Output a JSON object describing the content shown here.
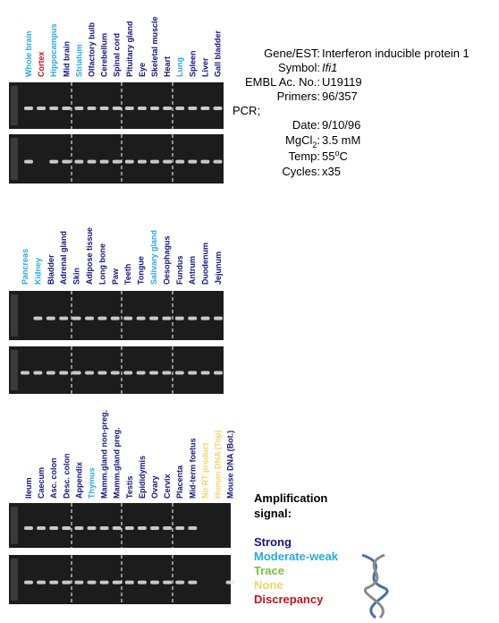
{
  "colors": {
    "strong": "#14147a",
    "moderate": "#29a8e0",
    "trace": "#7ac142",
    "none": "#f2d46a",
    "discrepancy": "#c0141a"
  },
  "panels": [
    {
      "lanes": [
        {
          "label": "Whole brain",
          "signal": "moderate"
        },
        {
          "label": "Cortex",
          "signal": "discrepancy"
        },
        {
          "label": "Hippocampus",
          "signal": "moderate"
        },
        {
          "label": "Mid brain",
          "signal": "strong"
        },
        {
          "label": "Striatum",
          "signal": "moderate"
        },
        {
          "label": "Olfactory bulb",
          "signal": "strong"
        },
        {
          "label": "Cerebellum",
          "signal": "strong"
        },
        {
          "label": "Spinal cord",
          "signal": "strong"
        },
        {
          "label": "Pituitary gland",
          "signal": "strong"
        },
        {
          "label": "Eye",
          "signal": "strong"
        },
        {
          "label": "Skeletal muscle",
          "signal": "strong"
        },
        {
          "label": "Heart",
          "signal": "strong"
        },
        {
          "label": "Lung",
          "signal": "moderate"
        },
        {
          "label": "Spleen",
          "signal": "strong"
        },
        {
          "label": "Liver",
          "signal": "strong"
        },
        {
          "label": "Gall bladder",
          "signal": "strong"
        }
      ]
    },
    {
      "lanes": [
        {
          "label": "Pancreas",
          "signal": "moderate"
        },
        {
          "label": "Kidney",
          "signal": "moderate"
        },
        {
          "label": "Bladder",
          "signal": "strong"
        },
        {
          "label": "Adrenal gland",
          "signal": "strong"
        },
        {
          "label": "Skin",
          "signal": "strong"
        },
        {
          "label": "Adipose tissue",
          "signal": "strong"
        },
        {
          "label": "Long bone",
          "signal": "strong"
        },
        {
          "label": "Paw",
          "signal": "strong"
        },
        {
          "label": "Teeth",
          "signal": "strong"
        },
        {
          "label": "Tongue",
          "signal": "strong"
        },
        {
          "label": "Salivary gland",
          "signal": "moderate"
        },
        {
          "label": "Oesophagus",
          "signal": "strong"
        },
        {
          "label": "Fundus",
          "signal": "strong"
        },
        {
          "label": "Antrum",
          "signal": "strong"
        },
        {
          "label": "Duodenum",
          "signal": "strong"
        },
        {
          "label": "Jejunum",
          "signal": "strong"
        }
      ]
    },
    {
      "lanes": [
        {
          "label": "Ileum",
          "signal": "strong"
        },
        {
          "label": "Caecum",
          "signal": "strong"
        },
        {
          "label": "Asc. colon",
          "signal": "strong"
        },
        {
          "label": "Desc. colon",
          "signal": "strong"
        },
        {
          "label": "Appendix",
          "signal": "strong"
        },
        {
          "label": "Thymus",
          "signal": "moderate"
        },
        {
          "label": "Mamm.gland non-preg.",
          "signal": "strong"
        },
        {
          "label": "Mamm.gland preg.",
          "signal": "strong"
        },
        {
          "label": "Testis",
          "signal": "strong"
        },
        {
          "label": "Epididymis",
          "signal": "strong"
        },
        {
          "label": "Ovary",
          "signal": "strong"
        },
        {
          "label": "Cervix",
          "signal": "strong"
        },
        {
          "label": "Placenta",
          "signal": "strong"
        },
        {
          "label": "Mid-term foetus",
          "signal": "strong"
        },
        {
          "label": "No RT product",
          "signal": "none"
        },
        {
          "label": "Human DNA (Top)",
          "signal": "none"
        },
        {
          "label": "Mouse DNA (Bot.)",
          "signal": "strong"
        }
      ]
    }
  ],
  "info": {
    "gene": {
      "label": "Gene/EST:",
      "value": "Interferon inducible protein 1"
    },
    "symbol": {
      "label": "Symbol:",
      "value": "Ifi1"
    },
    "embl": {
      "label": "EMBL Ac. No.:",
      "value": "U19119"
    },
    "primers": {
      "label": "Primers:",
      "value": "96/357"
    },
    "pcr": "PCR;",
    "date": {
      "label": "Date:",
      "value": "9/10/96"
    },
    "mgcl": {
      "label": "MgCl",
      "label_sub": "2",
      "label_end": ":",
      "value": "3.5 mM"
    },
    "temp": {
      "label": "Temp:",
      "value": "55",
      "value_sup": "o",
      "value_unit": "C"
    },
    "cycles": {
      "label": "Cycles:",
      "value": "x35"
    }
  },
  "legend": {
    "title": [
      "Amplification",
      "signal:"
    ],
    "entries": [
      {
        "label": "Strong",
        "signal": "strong"
      },
      {
        "label": "Moderate-weak",
        "signal": "moderate"
      },
      {
        "label": "Trace",
        "signal": "trace"
      },
      {
        "label": "None",
        "signal": "none"
      },
      {
        "label": "Discrepancy",
        "signal": "discrepancy"
      }
    ]
  }
}
